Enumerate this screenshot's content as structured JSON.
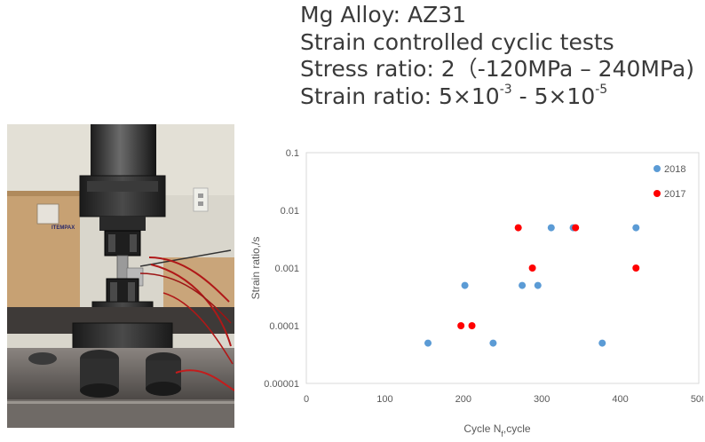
{
  "header": {
    "lines": [
      {
        "text": "Mg Alloy: AZ31"
      },
      {
        "text": "Strain controlled cyclic tests"
      },
      {
        "text": "Stress ratio: 2（-120MPa – 240MPa)"
      },
      {
        "pre": "Strain ratio: 5×10",
        "sup1": "-3",
        "mid": " - 5×10",
        "sup2": "-5"
      }
    ]
  },
  "photo": {
    "description": "test-machine-grips-photo",
    "visible_labels": [
      "ITEMPAX"
    ]
  },
  "chart_data": {
    "type": "scatter",
    "title": "",
    "xlabel": "Cycle N",
    "xlabel_sub": "f",
    "xlabel_suffix": ",cycle",
    "ylabel": "Strain ratio,/s",
    "x_scale": "linear",
    "y_scale": "log",
    "xlim": [
      0,
      500
    ],
    "ylim": [
      1e-05,
      0.1
    ],
    "x_ticks": [
      0,
      100,
      200,
      300,
      400,
      500
    ],
    "x_tick_labels": [
      "0",
      "100",
      "200",
      "300",
      "400",
      "500"
    ],
    "y_ticks": [
      1e-05,
      0.0001,
      0.001,
      0.01,
      0.1
    ],
    "y_tick_labels": [
      "0.00001",
      "0.0001",
      "0.001",
      "0.01",
      "0.1"
    ],
    "grid": false,
    "legend_position": "top-right",
    "series": [
      {
        "name": "2018",
        "color": "#5b9bd5",
        "points": [
          {
            "x": 155,
            "y": 5e-05
          },
          {
            "x": 202,
            "y": 0.0005
          },
          {
            "x": 238,
            "y": 5e-05
          },
          {
            "x": 275,
            "y": 0.0005
          },
          {
            "x": 295,
            "y": 0.0005
          },
          {
            "x": 312,
            "y": 0.005
          },
          {
            "x": 340,
            "y": 0.005
          },
          {
            "x": 377,
            "y": 5e-05
          },
          {
            "x": 420,
            "y": 0.005
          }
        ]
      },
      {
        "name": "2017",
        "color": "#ff0000",
        "points": [
          {
            "x": 197,
            "y": 0.0001
          },
          {
            "x": 211,
            "y": 0.0001
          },
          {
            "x": 270,
            "y": 0.005
          },
          {
            "x": 288,
            "y": 0.001
          },
          {
            "x": 343,
            "y": 0.005
          },
          {
            "x": 420,
            "y": 0.001
          }
        ]
      }
    ]
  }
}
